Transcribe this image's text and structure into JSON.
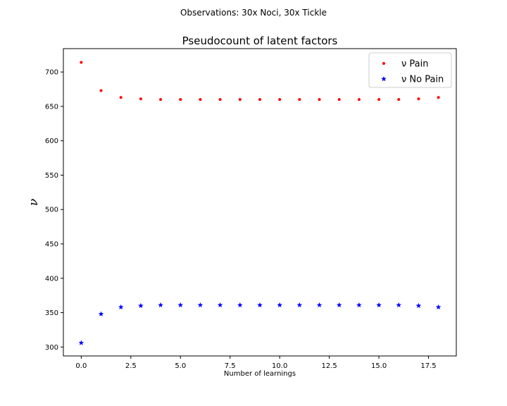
{
  "chart_data": {
    "type": "scatter",
    "suptitle": "Observations: 30x Noci, 30x Tickle",
    "title": "Pseudocount of latent factors",
    "xlabel": "Number of learnings",
    "ylabel": "ν",
    "xlim": [
      -0.9,
      18.9
    ],
    "ylim": [
      287,
      734
    ],
    "xticks": [
      0.0,
      2.5,
      5.0,
      7.5,
      10.0,
      12.5,
      15.0,
      17.5
    ],
    "xtick_labels": [
      "0.0",
      "2.5",
      "5.0",
      "7.5",
      "10.0",
      "12.5",
      "15.0",
      "17.5"
    ],
    "yticks": [
      300,
      350,
      400,
      450,
      500,
      550,
      600,
      650,
      700
    ],
    "ytick_labels": [
      "300",
      "350",
      "400",
      "450",
      "500",
      "550",
      "600",
      "650",
      "700"
    ],
    "grid": false,
    "legend_position": "top-right",
    "series": [
      {
        "name": "ν Pain",
        "marker": "dot",
        "color": "#ff0000",
        "x": [
          0,
          1,
          2,
          3,
          4,
          5,
          6,
          7,
          8,
          9,
          10,
          11,
          12,
          13,
          14,
          15,
          16,
          17,
          18
        ],
        "y": [
          714,
          673,
          663,
          661,
          660,
          660,
          660,
          660,
          660,
          660,
          660,
          660,
          660,
          660,
          660,
          660,
          660,
          661,
          663
        ]
      },
      {
        "name": "ν No Pain",
        "marker": "star",
        "color": "#0000ff",
        "x": [
          0,
          1,
          2,
          3,
          4,
          5,
          6,
          7,
          8,
          9,
          10,
          11,
          12,
          13,
          14,
          15,
          16,
          17,
          18
        ],
        "y": [
          306,
          348,
          358,
          360,
          361,
          361,
          361,
          361,
          361,
          361,
          361,
          361,
          361,
          361,
          361,
          361,
          361,
          360,
          358
        ]
      }
    ]
  }
}
